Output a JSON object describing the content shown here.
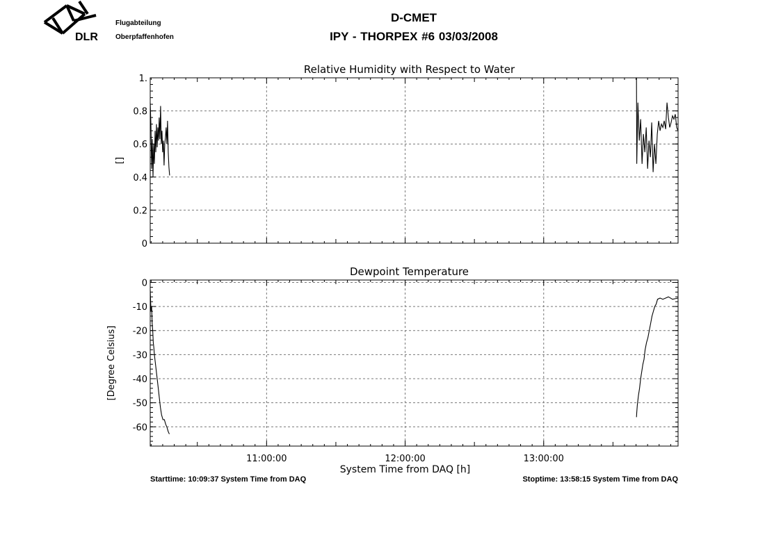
{
  "header": {
    "org_line1": "Flugabteilung",
    "org_line2": "Oberpfaffenhofen",
    "logo_text": "DLR",
    "title": "D-CMET",
    "subtitle": "IPY - THORPEX #6   03/03/2008"
  },
  "footer": {
    "start": "Starttime: 10:09:37 System Time from DAQ",
    "stop": "Stoptime: 13:58:15 System Time from DAQ"
  },
  "chart_data": [
    {
      "type": "line",
      "title": "Relative Humidity with Respect to Water",
      "ylabel": "[]",
      "xlabel": "",
      "x_unit": "hours",
      "xlim": [
        10.16,
        13.97
      ],
      "ylim": [
        0,
        1.0
      ],
      "yticks": [
        0,
        0.2,
        0.4,
        0.6,
        0.8,
        1.0
      ],
      "ytick_labels": [
        "0",
        "0.2",
        "0.4",
        "0.6",
        "0.8",
        "1."
      ],
      "xticks": [
        11,
        12,
        13
      ],
      "xtick_labels": [
        "",
        "",
        ""
      ],
      "grid": true,
      "series": [
        {
          "values": [
            [
              10.16,
              0.85
            ],
            [
              10.165,
              0.72
            ],
            [
              10.17,
              0.45
            ],
            [
              10.175,
              0.63
            ],
            [
              10.18,
              0.4
            ],
            [
              10.185,
              0.6
            ],
            [
              10.19,
              0.48
            ],
            [
              10.195,
              0.68
            ],
            [
              10.2,
              0.55
            ],
            [
              10.205,
              0.72
            ],
            [
              10.21,
              0.58
            ],
            [
              10.215,
              0.7
            ],
            [
              10.22,
              0.62
            ],
            [
              10.225,
              0.76
            ],
            [
              10.23,
              0.63
            ],
            [
              10.235,
              0.83
            ],
            [
              10.24,
              0.6
            ],
            [
              10.245,
              0.68
            ],
            [
              10.25,
              0.55
            ],
            [
              10.255,
              0.62
            ],
            [
              10.26,
              0.47
            ],
            [
              10.265,
              0.6
            ],
            [
              10.27,
              0.64
            ],
            [
              10.275,
              0.7
            ],
            [
              10.28,
              0.6
            ],
            [
              10.285,
              0.74
            ],
            [
              10.29,
              0.55
            ],
            [
              10.295,
              0.46
            ],
            [
              10.3,
              0.41
            ]
          ]
        },
        {
          "values": [
            [
              13.67,
              1.0
            ],
            [
              13.672,
              0.48
            ],
            [
              13.68,
              0.85
            ],
            [
              13.69,
              0.62
            ],
            [
              13.7,
              0.75
            ],
            [
              13.71,
              0.48
            ],
            [
              13.72,
              0.66
            ],
            [
              13.73,
              0.55
            ],
            [
              13.74,
              0.7
            ],
            [
              13.75,
              0.45
            ],
            [
              13.76,
              0.62
            ],
            [
              13.77,
              0.52
            ],
            [
              13.78,
              0.73
            ],
            [
              13.79,
              0.43
            ],
            [
              13.8,
              0.6
            ],
            [
              13.81,
              0.48
            ],
            [
              13.82,
              0.66
            ],
            [
              13.83,
              0.74
            ],
            [
              13.84,
              0.68
            ],
            [
              13.85,
              0.72
            ],
            [
              13.86,
              0.7
            ],
            [
              13.87,
              0.74
            ],
            [
              13.88,
              0.69
            ],
            [
              13.89,
              0.85
            ],
            [
              13.9,
              0.76
            ],
            [
              13.91,
              0.7
            ],
            [
              13.92,
              0.73
            ],
            [
              13.93,
              0.77
            ],
            [
              13.94,
              0.75
            ],
            [
              13.95,
              0.78
            ],
            [
              13.96,
              0.7
            ],
            [
              13.97,
              0.68
            ]
          ]
        }
      ]
    },
    {
      "type": "line",
      "title": "Dewpoint Temperature",
      "ylabel": "[Degree Celsius]",
      "xlabel": "System Time from DAQ [h]",
      "x_unit": "hours",
      "xlim": [
        10.16,
        13.97
      ],
      "ylim": [
        -68,
        1
      ],
      "yticks": [
        0,
        -10,
        -20,
        -30,
        -40,
        -50,
        -60
      ],
      "ytick_labels": [
        "0",
        "-10",
        "-20",
        "-30",
        "-40",
        "-50",
        "-60"
      ],
      "xticks": [
        11,
        12,
        13
      ],
      "xtick_labels": [
        "11:00:00",
        "12:00:00",
        "13:00:00"
      ],
      "grid": true,
      "series": [
        {
          "values": [
            [
              10.16,
              -3
            ],
            [
              10.163,
              -8
            ],
            [
              10.166,
              -12
            ],
            [
              10.17,
              -10
            ],
            [
              10.174,
              -17
            ],
            [
              10.178,
              -20
            ],
            [
              10.182,
              -25
            ],
            [
              10.186,
              -27
            ],
            [
              10.19,
              -30
            ],
            [
              10.196,
              -33
            ],
            [
              10.202,
              -36
            ],
            [
              10.21,
              -40
            ],
            [
              10.218,
              -44
            ],
            [
              10.226,
              -48
            ],
            [
              10.234,
              -52
            ],
            [
              10.242,
              -55
            ],
            [
              10.252,
              -57
            ],
            [
              10.262,
              -57
            ],
            [
              10.272,
              -59
            ],
            [
              10.28,
              -60
            ],
            [
              10.29,
              -62
            ],
            [
              10.298,
              -63
            ]
          ]
        },
        {
          "values": [
            [
              13.67,
              -56
            ],
            [
              13.672,
              -54
            ],
            [
              13.676,
              -51
            ],
            [
              13.684,
              -47
            ],
            [
              13.692,
              -44
            ],
            [
              13.7,
              -40
            ],
            [
              13.708,
              -37
            ],
            [
              13.716,
              -34
            ],
            [
              13.724,
              -32
            ],
            [
              13.732,
              -28
            ],
            [
              13.742,
              -25
            ],
            [
              13.752,
              -23
            ],
            [
              13.762,
              -20
            ],
            [
              13.772,
              -17
            ],
            [
              13.782,
              -14
            ],
            [
              13.792,
              -12
            ],
            [
              13.802,
              -10
            ],
            [
              13.812,
              -9
            ],
            [
              13.822,
              -7
            ],
            [
              13.84,
              -6.5
            ],
            [
              13.86,
              -7
            ],
            [
              13.88,
              -6.5
            ],
            [
              13.9,
              -6
            ],
            [
              13.93,
              -7
            ],
            [
              13.97,
              -6.5
            ]
          ]
        }
      ]
    }
  ]
}
